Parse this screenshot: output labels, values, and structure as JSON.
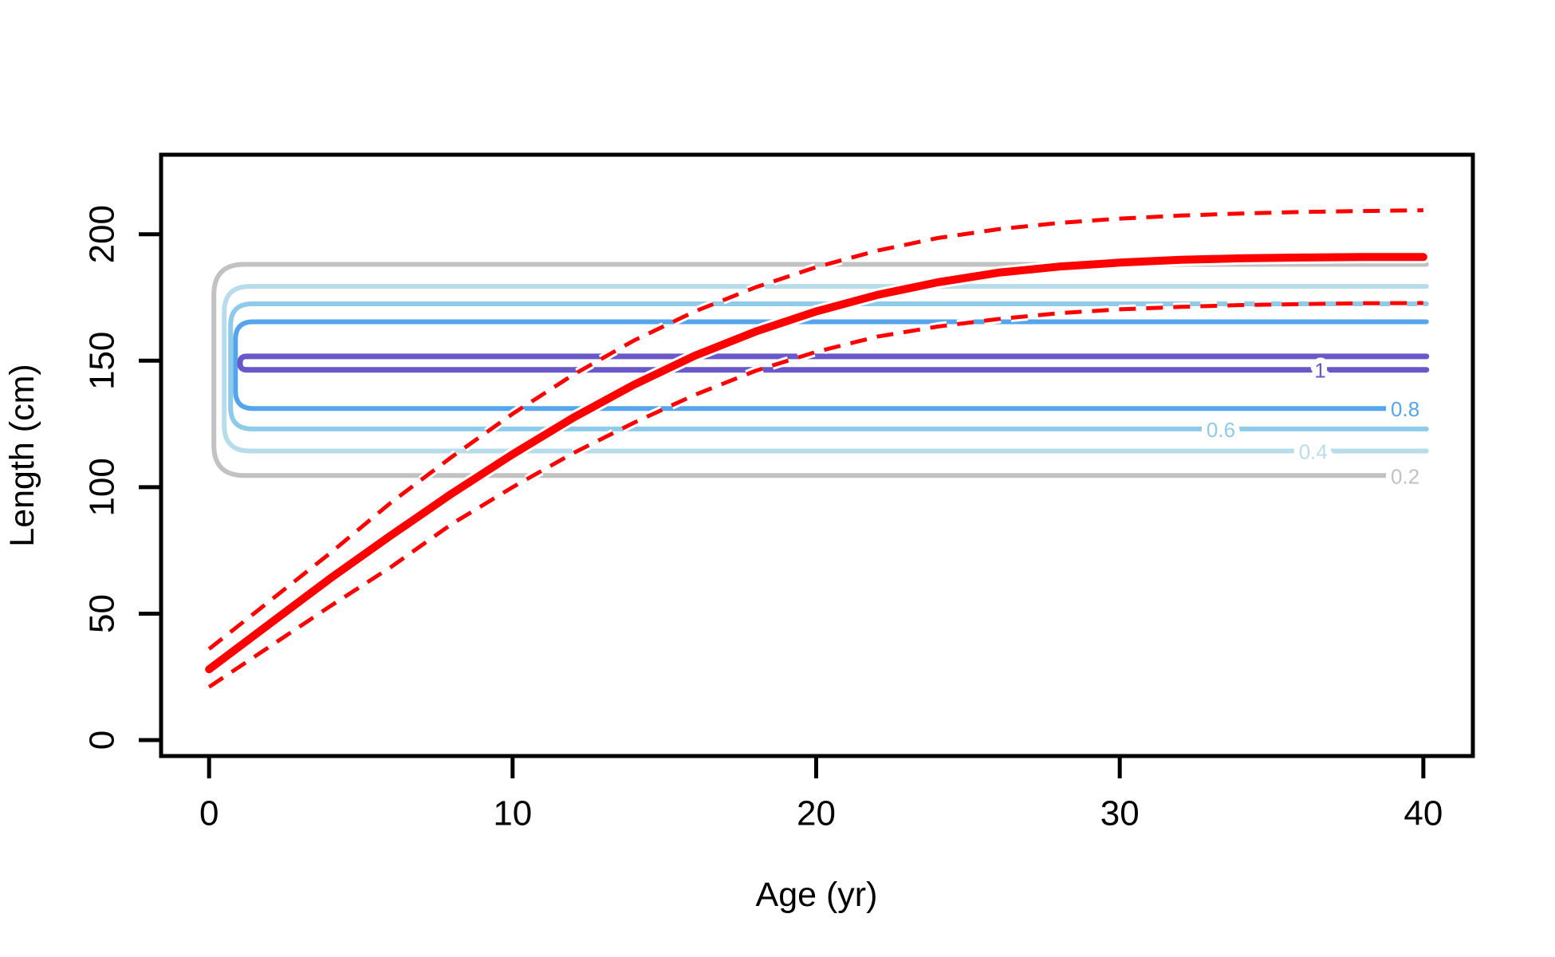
{
  "figure": {
    "background": "#ffffff",
    "axis_color": "#000000"
  },
  "chart_data": {
    "type": "line",
    "title": "",
    "xlabel": "Age (yr)",
    "ylabel": "Length (cm)",
    "x_ticks": [
      0,
      10,
      20,
      30,
      40
    ],
    "y_ticks": [
      0,
      50,
      100,
      150,
      200
    ],
    "xlim": [
      -1.58,
      41.63
    ],
    "ylim": [
      -6.3,
      231.45
    ],
    "grid": false,
    "legend_position": "none",
    "series": [
      {
        "name": "mean-length-curve",
        "color": "#FF0000",
        "line_style": "solid",
        "line_width": 10,
        "age": [
          0,
          2,
          4,
          6,
          8,
          10,
          12,
          14,
          16,
          18,
          20,
          22,
          24,
          26,
          28,
          30,
          32,
          34,
          36,
          38,
          40
        ],
        "length": [
          28,
          46,
          64,
          81,
          97.5,
          113,
          127.5,
          140.5,
          152,
          161.5,
          169.5,
          176,
          181,
          184.8,
          187.2,
          188.8,
          189.9,
          190.5,
          190.8,
          191,
          191
        ]
      },
      {
        "name": "upper-dashed-curve",
        "color": "#FF0000",
        "line_style": "dashed",
        "line_width": 5,
        "age": [
          0,
          2,
          4,
          6,
          8,
          10,
          12,
          14,
          16,
          18,
          20,
          22,
          24,
          26,
          28,
          30,
          32,
          34,
          36,
          38,
          40
        ],
        "length": [
          36,
          55,
          74,
          94,
          112,
          129,
          144.5,
          158,
          169.5,
          179,
          187,
          193.5,
          198.5,
          202,
          204.5,
          206.2,
          207.4,
          208.2,
          208.8,
          209.2,
          209.5
        ]
      },
      {
        "name": "lower-dashed-curve",
        "color": "#FF0000",
        "line_style": "dashed",
        "line_width": 5,
        "age": [
          0,
          2,
          4,
          6,
          8,
          10,
          12,
          14,
          16,
          18,
          20,
          22,
          24,
          26,
          28,
          30,
          32,
          34,
          36,
          38,
          40
        ],
        "length": [
          21,
          37,
          53,
          68.5,
          85.5,
          100,
          113.5,
          125.5,
          136.5,
          146,
          153.5,
          159.5,
          163.5,
          166.5,
          168.8,
          170.3,
          171.3,
          172,
          172.4,
          172.7,
          172.8
        ]
      }
    ],
    "contours": [
      {
        "level": "0.2",
        "color": "#C2C2C2",
        "length_top": 188.1,
        "length_bottom": 104.6,
        "age_left": 0.16,
        "age_right_top": 40.1,
        "age_right_bottom": 38.77,
        "cap_radius": 38,
        "label": {
          "text": "0.2",
          "age": 39.4
        }
      },
      {
        "level": "0.4",
        "color": "#B9DCEC",
        "length_top": 179.4,
        "length_bottom": 114.3,
        "age_left": 0.5,
        "age_right_top": 40.1,
        "age_right_bottom": 40.1,
        "cap_radius": 32,
        "label": {
          "text": "0.4",
          "age": 36.37
        }
      },
      {
        "level": "0.6",
        "color": "#8ECBE8",
        "length_top": 172.5,
        "length_bottom": 123.0,
        "age_left": 0.71,
        "age_right_top": 40.1,
        "age_right_bottom": 40.1,
        "cap_radius": 27,
        "label": {
          "text": "0.6",
          "age": 33.33
        }
      },
      {
        "level": "0.8",
        "color": "#55A5EC",
        "length_top": 165.4,
        "length_bottom": 131.1,
        "age_left": 0.87,
        "age_right_top": 40.1,
        "age_right_bottom": 38.77,
        "cap_radius": 22,
        "label": {
          "text": "0.8",
          "age": 39.4
        }
      },
      {
        "level": "1",
        "color": "#6A58C9",
        "length_top": 151.7,
        "length_bottom": 146.4,
        "age_left": 1.02,
        "age_right_top": 40.1,
        "age_right_bottom": 40.1,
        "cap_radius": 8,
        "label": {
          "text": "1",
          "age": 36.6
        }
      }
    ]
  }
}
